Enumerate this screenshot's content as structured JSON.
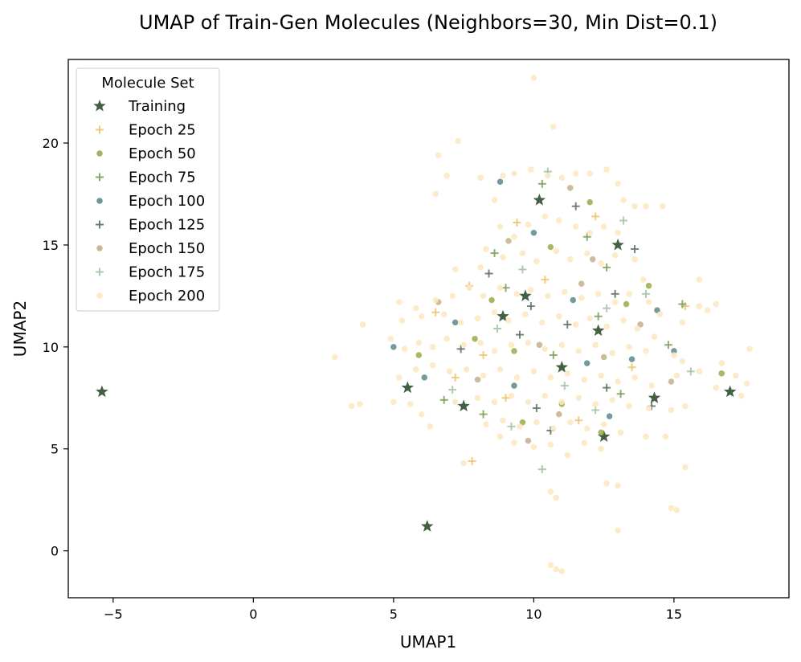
{
  "chart_data": {
    "type": "scatter",
    "title": "UMAP of Train-Gen Molecules (Neighbors=30, Min Dist=0.1)",
    "xlabel": "UMAP1",
    "ylabel": "UMAP2",
    "xlim": [
      -6.6,
      19.1
    ],
    "ylim": [
      -2.3,
      24.1
    ],
    "xticks": [
      -5,
      0,
      5,
      10,
      15
    ],
    "xtick_labels": [
      "−5",
      "0",
      "5",
      "10",
      "15"
    ],
    "yticks": [
      0,
      5,
      10,
      15,
      20
    ],
    "ytick_labels": [
      "0",
      "5",
      "10",
      "15",
      "20"
    ],
    "grid": false,
    "legend": {
      "title": "Molecule Set",
      "placement": "top-left"
    },
    "series": [
      {
        "name": "Training",
        "marker": "star",
        "color": "#2f4f2f",
        "points": [
          [
            6.2,
            1.2
          ],
          [
            -5.4,
            7.8
          ],
          [
            7.5,
            7.1
          ],
          [
            17.0,
            7.8
          ],
          [
            14.3,
            7.5
          ],
          [
            12.5,
            5.6
          ],
          [
            9.7,
            12.5
          ],
          [
            12.3,
            10.8
          ],
          [
            5.5,
            8.0
          ],
          [
            11.0,
            9.0
          ],
          [
            8.9,
            11.5
          ],
          [
            13.0,
            15.0
          ],
          [
            10.2,
            17.2
          ]
        ]
      },
      {
        "name": "Epoch 25",
        "marker": "plus",
        "color": "#f0c36d",
        "points": [
          [
            7.2,
            8.5
          ],
          [
            7.8,
            4.4
          ],
          [
            7.7,
            13.0
          ],
          [
            6.5,
            11.7
          ],
          [
            9.4,
            16.1
          ],
          [
            12.2,
            16.4
          ],
          [
            11.6,
            6.4
          ],
          [
            15.4,
            12.0
          ],
          [
            8.2,
            9.6
          ],
          [
            10.4,
            13.3
          ],
          [
            13.5,
            9.0
          ],
          [
            9.0,
            7.5
          ]
        ]
      },
      {
        "name": "Epoch 50",
        "marker": "circle",
        "color": "#9aab4a",
        "points": [
          [
            12.4,
            5.8
          ],
          [
            9.3,
            9.8
          ],
          [
            10.6,
            14.9
          ],
          [
            13.3,
            12.1
          ],
          [
            8.5,
            12.3
          ],
          [
            11.0,
            7.2
          ],
          [
            12.0,
            17.1
          ],
          [
            7.9,
            10.4
          ],
          [
            14.1,
            13.0
          ],
          [
            9.6,
            6.3
          ],
          [
            16.7,
            8.7
          ],
          [
            5.9,
            9.6
          ]
        ]
      },
      {
        "name": "Epoch 75",
        "marker": "plus",
        "color": "#7ea05a",
        "points": [
          [
            11.9,
            15.4
          ],
          [
            12.6,
            13.9
          ],
          [
            9.0,
            12.9
          ],
          [
            10.7,
            9.6
          ],
          [
            13.1,
            7.7
          ],
          [
            8.2,
            6.7
          ],
          [
            14.8,
            10.1
          ],
          [
            6.8,
            7.4
          ],
          [
            10.3,
            18.0
          ],
          [
            12.3,
            11.5
          ],
          [
            15.3,
            12.1
          ],
          [
            8.6,
            14.6
          ]
        ]
      },
      {
        "name": "Epoch 100",
        "marker": "circle",
        "color": "#5b8a8c",
        "points": [
          [
            8.8,
            18.1
          ],
          [
            5.0,
            10.0
          ],
          [
            7.2,
            11.2
          ],
          [
            11.4,
            12.3
          ],
          [
            13.5,
            9.4
          ],
          [
            9.3,
            8.1
          ],
          [
            12.7,
            6.6
          ],
          [
            10.0,
            15.6
          ],
          [
            14.4,
            11.8
          ],
          [
            15.0,
            9.8
          ],
          [
            6.1,
            8.5
          ],
          [
            11.9,
            9.2
          ]
        ]
      },
      {
        "name": "Epoch 125",
        "marker": "plus",
        "color": "#5e7266",
        "points": [
          [
            9.5,
            10.6
          ],
          [
            11.2,
            11.1
          ],
          [
            12.6,
            8.0
          ],
          [
            10.1,
            7.0
          ],
          [
            8.4,
            13.6
          ],
          [
            13.6,
            14.8
          ],
          [
            11.5,
            16.9
          ],
          [
            7.4,
            9.9
          ],
          [
            14.2,
            7.1
          ],
          [
            9.9,
            12.0
          ],
          [
            12.9,
            12.6
          ],
          [
            10.6,
            5.9
          ]
        ]
      },
      {
        "name": "Epoch 150",
        "marker": "circle",
        "color": "#c2b08a",
        "points": [
          [
            10.2,
            10.1
          ],
          [
            11.7,
            13.1
          ],
          [
            9.1,
            15.2
          ],
          [
            12.5,
            9.5
          ],
          [
            8.0,
            8.4
          ],
          [
            13.8,
            11.1
          ],
          [
            10.9,
            6.7
          ],
          [
            11.3,
            17.8
          ],
          [
            6.6,
            12.2
          ],
          [
            9.8,
            5.4
          ],
          [
            14.9,
            8.3
          ],
          [
            12.1,
            14.3
          ]
        ]
      },
      {
        "name": "Epoch 175",
        "marker": "plus",
        "color": "#a7c2a6",
        "points": [
          [
            10.3,
            4.0
          ],
          [
            12.6,
            11.9
          ],
          [
            14.0,
            12.6
          ],
          [
            11.1,
            8.1
          ],
          [
            9.6,
            13.8
          ],
          [
            8.7,
            10.9
          ],
          [
            13.2,
            16.2
          ],
          [
            10.5,
            18.6
          ],
          [
            7.1,
            7.9
          ],
          [
            15.6,
            8.8
          ],
          [
            12.2,
            6.9
          ],
          [
            9.2,
            6.1
          ]
        ]
      },
      {
        "name": "Epoch 200",
        "marker": "circle",
        "color": "#fde6bf",
        "points": [
          [
            10.0,
            23.2
          ],
          [
            10.7,
            20.8
          ],
          [
            7.3,
            20.1
          ],
          [
            6.6,
            19.4
          ],
          [
            6.9,
            18.4
          ],
          [
            6.5,
            17.5
          ],
          [
            8.1,
            18.3
          ],
          [
            8.9,
            18.4
          ],
          [
            9.3,
            18.5
          ],
          [
            9.9,
            18.7
          ],
          [
            10.5,
            18.4
          ],
          [
            11.0,
            18.3
          ],
          [
            11.5,
            18.5
          ],
          [
            12.0,
            18.5
          ],
          [
            12.6,
            18.7
          ],
          [
            13.0,
            18.0
          ],
          [
            13.2,
            17.2
          ],
          [
            13.6,
            16.9
          ],
          [
            14.0,
            16.9
          ],
          [
            14.6,
            16.9
          ],
          [
            8.6,
            17.2
          ],
          [
            8.8,
            15.9
          ],
          [
            9.3,
            15.4
          ],
          [
            9.8,
            16.0
          ],
          [
            10.4,
            16.4
          ],
          [
            10.9,
            16.2
          ],
          [
            11.5,
            15.9
          ],
          [
            12.0,
            15.6
          ],
          [
            12.5,
            15.9
          ],
          [
            13.0,
            15.6
          ],
          [
            8.3,
            14.8
          ],
          [
            8.9,
            14.4
          ],
          [
            9.6,
            14.6
          ],
          [
            10.1,
            14.2
          ],
          [
            10.8,
            14.7
          ],
          [
            11.3,
            14.3
          ],
          [
            11.9,
            14.6
          ],
          [
            12.4,
            14.1
          ],
          [
            12.9,
            14.5
          ],
          [
            13.6,
            14.3
          ],
          [
            7.2,
            13.8
          ],
          [
            8.1,
            13.9
          ],
          [
            13.9,
            13.3
          ],
          [
            5.2,
            12.2
          ],
          [
            5.8,
            11.9
          ],
          [
            6.5,
            12.3
          ],
          [
            7.1,
            12.5
          ],
          [
            7.7,
            12.9
          ],
          [
            8.2,
            12.5
          ],
          [
            8.8,
            12.9
          ],
          [
            9.4,
            12.6
          ],
          [
            9.9,
            12.8
          ],
          [
            10.5,
            12.5
          ],
          [
            11.1,
            12.7
          ],
          [
            11.7,
            12.4
          ],
          [
            12.3,
            12.6
          ],
          [
            12.9,
            12.2
          ],
          [
            13.4,
            12.6
          ],
          [
            14.1,
            12.2
          ],
          [
            14.5,
            11.6
          ],
          [
            15.3,
            11.2
          ],
          [
            15.9,
            12.0
          ],
          [
            16.2,
            11.8
          ],
          [
            16.5,
            12.1
          ],
          [
            15.9,
            13.3
          ],
          [
            3.9,
            11.1
          ],
          [
            5.3,
            11.3
          ],
          [
            6.0,
            11.5
          ],
          [
            6.8,
            11.6
          ],
          [
            7.4,
            11.2
          ],
          [
            8.0,
            11.4
          ],
          [
            8.6,
            11.7
          ],
          [
            9.1,
            11.3
          ],
          [
            9.7,
            11.6
          ],
          [
            10.3,
            11.2
          ],
          [
            10.9,
            11.5
          ],
          [
            11.5,
            11.1
          ],
          [
            12.0,
            11.4
          ],
          [
            12.6,
            11.0
          ],
          [
            13.2,
            11.3
          ],
          [
            13.7,
            10.9
          ],
          [
            14.3,
            10.5
          ],
          [
            2.9,
            9.5
          ],
          [
            4.9,
            10.4
          ],
          [
            5.4,
            9.9
          ],
          [
            5.9,
            10.2
          ],
          [
            6.4,
            10.0
          ],
          [
            6.9,
            10.4
          ],
          [
            7.5,
            10.1
          ],
          [
            8.1,
            10.2
          ],
          [
            8.6,
            9.8
          ],
          [
            9.2,
            10.1
          ],
          [
            9.8,
            10.2
          ],
          [
            10.4,
            9.9
          ],
          [
            11.0,
            10.1
          ],
          [
            11.6,
            9.8
          ],
          [
            12.2,
            10.1
          ],
          [
            12.8,
            9.7
          ],
          [
            13.4,
            10.0
          ],
          [
            14.0,
            9.8
          ],
          [
            15.0,
            9.6
          ],
          [
            15.3,
            9.3
          ],
          [
            15.9,
            8.8
          ],
          [
            17.7,
            9.9
          ],
          [
            5.2,
            8.5
          ],
          [
            5.8,
            8.9
          ],
          [
            6.4,
            9.1
          ],
          [
            7.0,
            8.8
          ],
          [
            7.6,
            8.9
          ],
          [
            8.2,
            8.6
          ],
          [
            8.8,
            8.9
          ],
          [
            9.4,
            8.5
          ],
          [
            10.0,
            8.8
          ],
          [
            10.6,
            8.5
          ],
          [
            11.2,
            8.7
          ],
          [
            11.8,
            8.4
          ],
          [
            12.4,
            8.6
          ],
          [
            13.0,
            8.3
          ],
          [
            13.6,
            8.5
          ],
          [
            14.2,
            8.1
          ],
          [
            15.1,
            8.6
          ],
          [
            16.7,
            9.2
          ],
          [
            17.2,
            8.6
          ],
          [
            17.6,
            8.2
          ],
          [
            16.5,
            8.0
          ],
          [
            17.4,
            7.6
          ],
          [
            3.5,
            7.1
          ],
          [
            3.8,
            7.2
          ],
          [
            5.0,
            7.3
          ],
          [
            5.6,
            7.2
          ],
          [
            6.0,
            6.7
          ],
          [
            7.2,
            7.3
          ],
          [
            8.0,
            7.5
          ],
          [
            8.6,
            7.3
          ],
          [
            9.2,
            7.6
          ],
          [
            9.8,
            7.3
          ],
          [
            10.4,
            7.6
          ],
          [
            11.0,
            7.3
          ],
          [
            11.6,
            7.5
          ],
          [
            12.2,
            7.2
          ],
          [
            12.8,
            7.4
          ],
          [
            13.4,
            7.1
          ],
          [
            14.1,
            7.0
          ],
          [
            14.9,
            6.9
          ],
          [
            15.4,
            7.1
          ],
          [
            6.3,
            6.1
          ],
          [
            8.3,
            6.2
          ],
          [
            8.9,
            6.4
          ],
          [
            9.5,
            6.1
          ],
          [
            10.1,
            6.3
          ],
          [
            10.7,
            6.0
          ],
          [
            11.3,
            6.3
          ],
          [
            11.9,
            6.0
          ],
          [
            12.5,
            6.2
          ],
          [
            13.1,
            5.8
          ],
          [
            14.0,
            5.6
          ],
          [
            14.7,
            5.6
          ],
          [
            8.8,
            5.6
          ],
          [
            9.3,
            5.3
          ],
          [
            10.0,
            5.1
          ],
          [
            10.6,
            5.2
          ],
          [
            11.2,
            4.7
          ],
          [
            11.8,
            5.3
          ],
          [
            12.4,
            5.0
          ],
          [
            7.5,
            4.3
          ],
          [
            15.4,
            4.1
          ],
          [
            12.6,
            3.3
          ],
          [
            13.0,
            3.2
          ],
          [
            10.6,
            2.9
          ],
          [
            10.8,
            2.6
          ],
          [
            14.9,
            2.1
          ],
          [
            15.1,
            2.0
          ],
          [
            13.0,
            1.0
          ],
          [
            10.6,
            -0.7
          ],
          [
            10.8,
            -0.9
          ],
          [
            11.0,
            -1.0
          ]
        ]
      }
    ]
  }
}
